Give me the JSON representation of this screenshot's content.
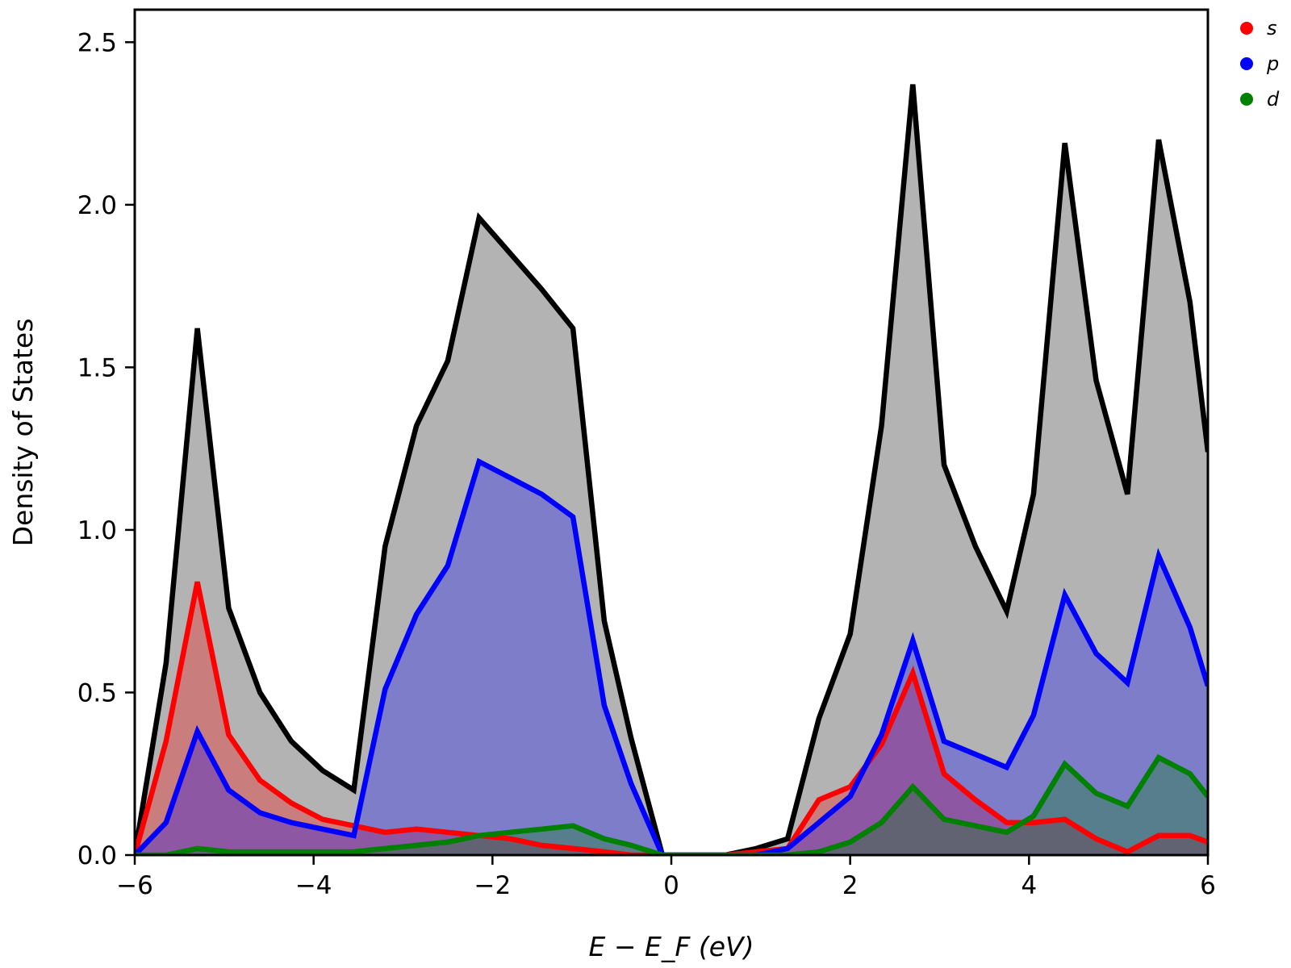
{
  "chart_data": {
    "type": "area",
    "xlabel": "E − E_F (eV)",
    "ylabel": "Density of States",
    "xlim": [
      -6,
      6
    ],
    "ylim": [
      0,
      2.6
    ],
    "x_ticks": [
      -6,
      -4,
      -2,
      0,
      2,
      4,
      6
    ],
    "x_tick_labels": [
      "−6",
      "−4",
      "−2",
      "0",
      "2",
      "4",
      "6"
    ],
    "y_ticks": [
      0,
      0.5,
      1.0,
      1.5,
      2.0,
      2.5
    ],
    "y_tick_labels": [
      "0.0",
      "0.5",
      "1.0",
      "1.5",
      "2.0",
      "2.5"
    ],
    "grid": false,
    "legend_position": "top-right",
    "x": [
      -6.0,
      -5.65,
      -5.3,
      -4.95,
      -4.6,
      -4.25,
      -3.9,
      -3.55,
      -3.2,
      -2.85,
      -2.5,
      -2.15,
      -1.8,
      -1.45,
      -1.1,
      -0.75,
      -0.45,
      -0.1,
      0.2,
      0.6,
      0.95,
      1.3,
      1.65,
      2.0,
      2.35,
      2.7,
      3.05,
      3.4,
      3.75,
      4.05,
      4.4,
      4.75,
      5.1,
      5.45,
      5.8,
      6.0
    ],
    "total": {
      "color": "#000000",
      "fill": "#b3b3b3",
      "values": [
        0.0,
        0.59,
        1.62,
        0.76,
        0.5,
        0.35,
        0.26,
        0.2,
        0.95,
        1.32,
        1.52,
        1.96,
        1.85,
        1.74,
        1.62,
        0.72,
        0.36,
        0.0,
        0.0,
        0.0,
        0.02,
        0.05,
        0.42,
        0.68,
        1.32,
        2.37,
        1.2,
        0.95,
        0.75,
        1.11,
        2.19,
        1.46,
        1.11,
        2.2,
        1.7,
        1.24
      ]
    },
    "series": [
      {
        "name": "s",
        "color": "#ff0000",
        "fill": "#ff0000",
        "fill_opacity": 0.3,
        "values": [
          0.0,
          0.35,
          0.84,
          0.37,
          0.23,
          0.16,
          0.11,
          0.09,
          0.07,
          0.08,
          0.07,
          0.06,
          0.05,
          0.03,
          0.02,
          0.01,
          0.0,
          0.0,
          0.0,
          0.0,
          0.01,
          0.02,
          0.17,
          0.21,
          0.34,
          0.56,
          0.25,
          0.17,
          0.1,
          0.1,
          0.11,
          0.05,
          0.01,
          0.06,
          0.06,
          0.04
        ]
      },
      {
        "name": "p",
        "color": "#0000ff",
        "fill": "#0000ff",
        "fill_opacity": 0.3,
        "values": [
          0.0,
          0.1,
          0.38,
          0.2,
          0.13,
          0.1,
          0.08,
          0.06,
          0.51,
          0.74,
          0.89,
          1.21,
          1.16,
          1.11,
          1.04,
          0.46,
          0.22,
          0.0,
          0.0,
          0.0,
          0.0,
          0.02,
          0.1,
          0.18,
          0.37,
          0.66,
          0.35,
          0.31,
          0.27,
          0.43,
          0.8,
          0.62,
          0.53,
          0.92,
          0.7,
          0.52
        ]
      },
      {
        "name": "d",
        "color": "#008000",
        "fill": "#008000",
        "fill_opacity": 0.3,
        "values": [
          0.0,
          0.0,
          0.02,
          0.01,
          0.01,
          0.01,
          0.01,
          0.01,
          0.02,
          0.03,
          0.04,
          0.06,
          0.07,
          0.08,
          0.09,
          0.05,
          0.03,
          0.0,
          0.0,
          0.0,
          0.0,
          0.0,
          0.01,
          0.04,
          0.1,
          0.21,
          0.11,
          0.09,
          0.07,
          0.12,
          0.28,
          0.19,
          0.15,
          0.3,
          0.25,
          0.18
        ]
      }
    ]
  }
}
